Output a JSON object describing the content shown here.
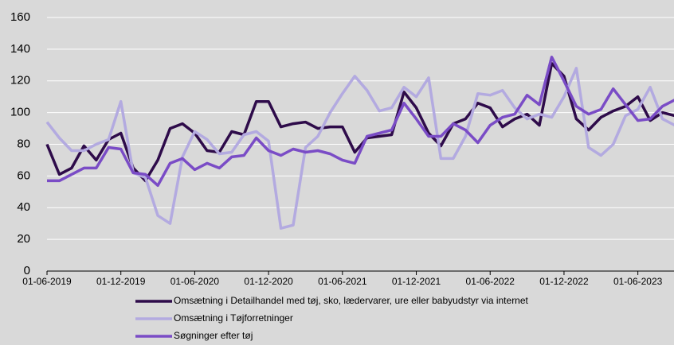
{
  "chart_data": {
    "type": "line",
    "x": [
      "2019-06-01",
      "2019-07-01",
      "2019-08-01",
      "2019-09-01",
      "2019-10-01",
      "2019-11-01",
      "2019-12-01",
      "2020-01-01",
      "2020-02-01",
      "2020-03-01",
      "2020-04-01",
      "2020-05-01",
      "2020-06-01",
      "2020-07-01",
      "2020-08-01",
      "2020-09-01",
      "2020-10-01",
      "2020-11-01",
      "2020-12-01",
      "2021-01-01",
      "2021-02-01",
      "2021-03-01",
      "2021-04-01",
      "2021-05-01",
      "2021-06-01",
      "2021-07-01",
      "2021-08-01",
      "2021-09-01",
      "2021-10-01",
      "2021-11-01",
      "2021-12-01",
      "2022-01-01",
      "2022-02-01",
      "2022-03-01",
      "2022-04-01",
      "2022-05-01",
      "2022-06-01",
      "2022-07-01",
      "2022-08-01",
      "2022-09-01",
      "2022-10-01",
      "2022-11-01",
      "2022-12-01",
      "2023-01-01",
      "2023-02-01",
      "2023-03-01",
      "2023-04-01",
      "2023-05-01",
      "2023-06-01",
      "2023-07-01",
      "2023-08-01",
      "2023-09-01"
    ],
    "series": [
      {
        "name": "Omsætning i Detailhandel med tøj, sko, lædervarer, ure eller babyudstyr  via internet",
        "color": "#2e0b4a",
        "values": [
          80,
          61,
          65,
          79,
          70,
          83,
          87,
          65,
          57,
          70,
          90,
          93,
          87,
          76,
          75,
          88,
          86,
          107,
          107,
          91,
          93,
          94,
          90,
          91,
          91,
          75,
          84,
          85,
          86,
          113,
          103,
          87,
          79,
          93,
          96,
          106,
          103,
          91,
          96,
          99,
          92,
          131,
          123,
          96,
          89,
          97,
          101,
          104,
          110,
          95,
          100,
          98
        ]
      },
      {
        "name": "Omsætning i Tøjforretninger",
        "color": "#b3aae0",
        "values": [
          94,
          84,
          76,
          76,
          80,
          83,
          107,
          62,
          59,
          35,
          30,
          72,
          88,
          83,
          74,
          75,
          86,
          88,
          82,
          27,
          29,
          78,
          85,
          100,
          112,
          123,
          114,
          101,
          103,
          116,
          110,
          122,
          71,
          71,
          85,
          112,
          111,
          114,
          103,
          96,
          99,
          97,
          110,
          128,
          78,
          73,
          80,
          98,
          102,
          116,
          96,
          92
        ]
      },
      {
        "name": "Søgninger efter tøj",
        "color": "#7a4cc6",
        "values": [
          57,
          57,
          61,
          65,
          65,
          78,
          77,
          62,
          61,
          54,
          68,
          71,
          64,
          68,
          65,
          72,
          73,
          84,
          76,
          73,
          77,
          75,
          76,
          74,
          70,
          68,
          85,
          87,
          89,
          106,
          96,
          85,
          85,
          93,
          89,
          81,
          92,
          97,
          99,
          111,
          105,
          135,
          120,
          104,
          99,
          102,
          115,
          105,
          95,
          96,
          104,
          108
        ]
      }
    ],
    "xlim": [
      "2019-06-01",
      "2023-09-01"
    ],
    "xticks": [
      {
        "value": "2019-06-01",
        "label": "01-06-2019"
      },
      {
        "value": "2019-12-01",
        "label": "01-12-2019"
      },
      {
        "value": "2020-06-01",
        "label": "01-06-2020"
      },
      {
        "value": "2020-12-01",
        "label": "01-12-2020"
      },
      {
        "value": "2021-06-01",
        "label": "01-06-2021"
      },
      {
        "value": "2021-12-01",
        "label": "01-12-2021"
      },
      {
        "value": "2022-06-01",
        "label": "01-06-2022"
      },
      {
        "value": "2022-12-01",
        "label": "01-12-2022"
      },
      {
        "value": "2023-06-01",
        "label": "01-06-2023"
      }
    ],
    "ylim": [
      0,
      160
    ],
    "yticks": [
      0,
      20,
      40,
      60,
      80,
      100,
      120,
      140,
      160
    ],
    "grid": true,
    "legend": "bottom"
  }
}
